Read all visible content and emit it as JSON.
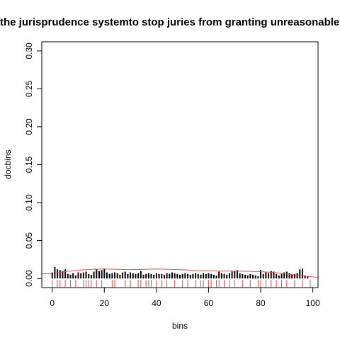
{
  "chart_data": {
    "type": "bar",
    "title": "the jurisprudence systemto stop juries from granting unreasonable m",
    "xlabel": "bins",
    "ylabel": "docbins",
    "xlim": [
      -4,
      102
    ],
    "ylim": [
      -0.012,
      0.312
    ],
    "xticks": [
      0,
      20,
      40,
      60,
      80,
      100
    ],
    "xtick_labels": [
      "0",
      "20",
      "40",
      "60",
      "80",
      "100"
    ],
    "yticks": [
      0.0,
      0.05,
      0.1,
      0.15,
      0.2,
      0.25,
      0.3
    ],
    "ytick_labels": [
      "0.00",
      "0.05",
      "0.10",
      "0.15",
      "0.20",
      "0.25",
      "0.30"
    ],
    "grid": false,
    "legend": "none",
    "colors": {
      "bars": "#000000",
      "curve": "#e05050",
      "rug": "#e05050"
    },
    "bars": {
      "x": [
        0,
        1,
        2,
        3,
        4,
        5,
        6,
        7,
        8,
        9,
        10,
        11,
        12,
        13,
        14,
        15,
        16,
        17,
        18,
        19,
        20,
        21,
        22,
        23,
        24,
        25,
        26,
        27,
        28,
        29,
        30,
        31,
        32,
        33,
        34,
        35,
        36,
        37,
        38,
        39,
        40,
        41,
        42,
        43,
        44,
        45,
        46,
        47,
        48,
        49,
        50,
        51,
        52,
        53,
        54,
        55,
        56,
        57,
        58,
        59,
        60,
        61,
        62,
        63,
        64,
        65,
        66,
        67,
        68,
        69,
        70,
        71,
        72,
        73,
        74,
        75,
        76,
        77,
        78,
        79,
        80,
        81,
        82,
        83,
        84,
        85,
        86,
        87,
        88,
        89,
        90,
        91,
        92,
        93,
        94,
        95,
        96,
        97,
        98
      ],
      "values": [
        0.008,
        0.015,
        0.012,
        0.011,
        0.01,
        0.012,
        0.006,
        0.005,
        0.007,
        0.004,
        0.008,
        0.007,
        0.008,
        0.009,
        0.006,
        0.005,
        0.009,
        0.012,
        0.01,
        0.011,
        0.013,
        0.008,
        0.006,
        0.007,
        0.008,
        0.007,
        0.005,
        0.008,
        0.009,
        0.006,
        0.008,
        0.007,
        0.006,
        0.007,
        0.01,
        0.005,
        0.006,
        0.007,
        0.006,
        0.005,
        0.007,
        0.006,
        0.006,
        0.005,
        0.007,
        0.006,
        0.008,
        0.007,
        0.006,
        0.005,
        0.006,
        0.007,
        0.006,
        0.005,
        0.006,
        0.007,
        0.006,
        0.005,
        0.007,
        0.006,
        0.007,
        0.006,
        0.005,
        0.004,
        0.009,
        0.007,
        0.006,
        0.005,
        0.007,
        0.009,
        0.01,
        0.011,
        0.007,
        0.006,
        0.005,
        0.004,
        0.006,
        0.005,
        0.004,
        0.003,
        0.011,
        0.006,
        0.008,
        0.007,
        0.01,
        0.009,
        0.006,
        0.004,
        0.006,
        0.008,
        0.009,
        0.007,
        0.005,
        0.006,
        0.007,
        0.012,
        0.013,
        0.004,
        0.003
      ]
    },
    "density_curve": {
      "x": [
        -4,
        0,
        5,
        10,
        15,
        20,
        25,
        30,
        35,
        40,
        45,
        50,
        55,
        60,
        65,
        70,
        75,
        80,
        85,
        90,
        95,
        100,
        102
      ],
      "y": [
        0.006,
        0.007,
        0.009,
        0.011,
        0.012,
        0.0125,
        0.012,
        0.0115,
        0.012,
        0.0125,
        0.012,
        0.0115,
        0.0105,
        0.01,
        0.0098,
        0.0098,
        0.0095,
        0.009,
        0.008,
        0.006,
        0.004,
        0.002,
        0.0015
      ]
    },
    "rug": [
      0,
      2,
      3,
      5,
      7,
      9,
      12,
      13,
      14,
      15,
      17,
      19,
      23,
      24,
      28,
      30,
      33,
      34,
      36,
      37,
      38,
      40,
      42,
      44,
      47,
      50,
      52,
      55,
      57,
      58,
      60,
      61,
      63,
      64,
      66,
      68,
      70,
      73,
      76,
      79,
      80,
      82,
      84,
      86,
      88,
      90,
      93,
      96,
      99
    ]
  }
}
